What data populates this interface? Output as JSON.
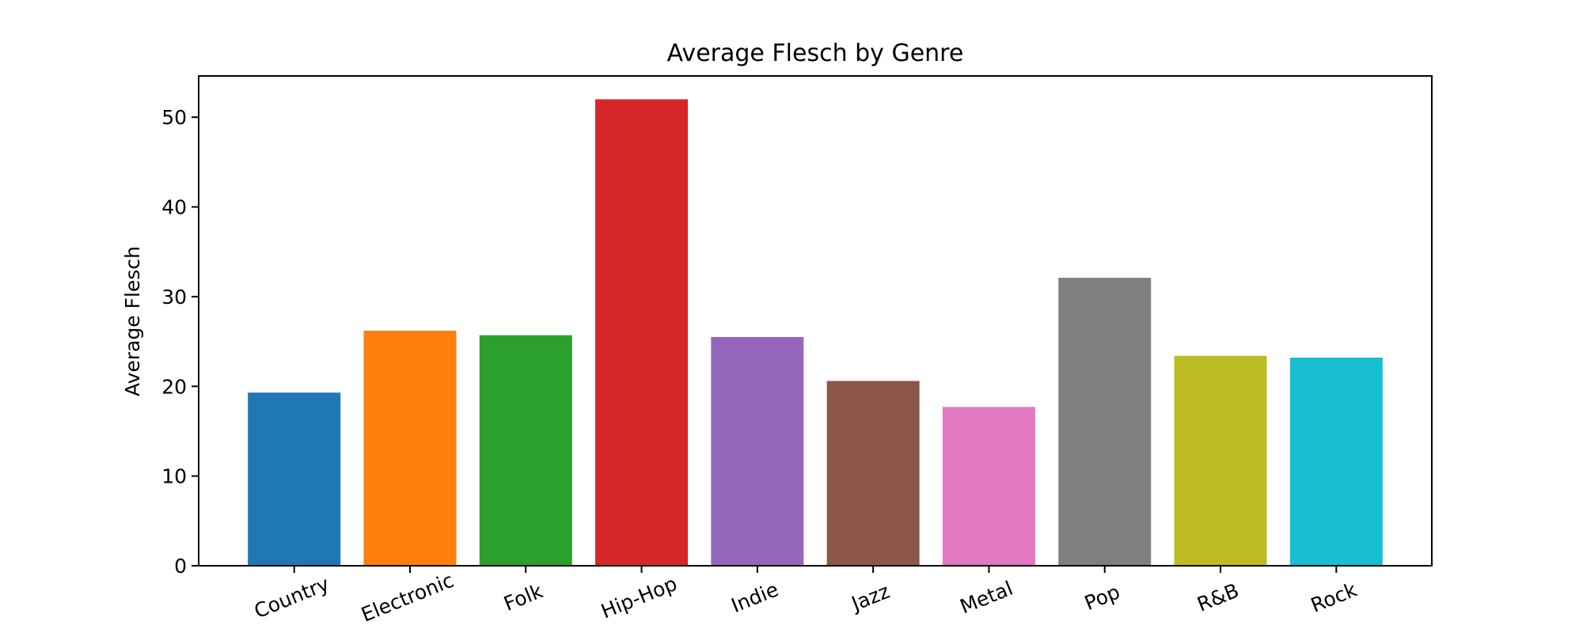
{
  "chart_data": {
    "type": "bar",
    "title": "Average Flesch by Genre",
    "xlabel": "",
    "ylabel": "Average Flesch",
    "categories": [
      "Country",
      "Electronic",
      "Folk",
      "Hip-Hop",
      "Indie",
      "Jazz",
      "Metal",
      "Pop",
      "R&B",
      "Rock"
    ],
    "values": [
      19.3,
      26.2,
      25.7,
      52.0,
      25.5,
      20.6,
      17.7,
      32.1,
      23.4,
      23.2
    ],
    "colors": [
      "#1f77b4",
      "#ff7f0e",
      "#2ca02c",
      "#d62728",
      "#9467bd",
      "#8c564b",
      "#e377c2",
      "#7f7f7f",
      "#bcbd22",
      "#17becf"
    ],
    "ylim": [
      0,
      54.6
    ],
    "yticks": [
      0,
      10,
      20,
      30,
      40,
      50
    ],
    "grid": false,
    "legend": "none",
    "xtick_rotation_deg": -22
  }
}
